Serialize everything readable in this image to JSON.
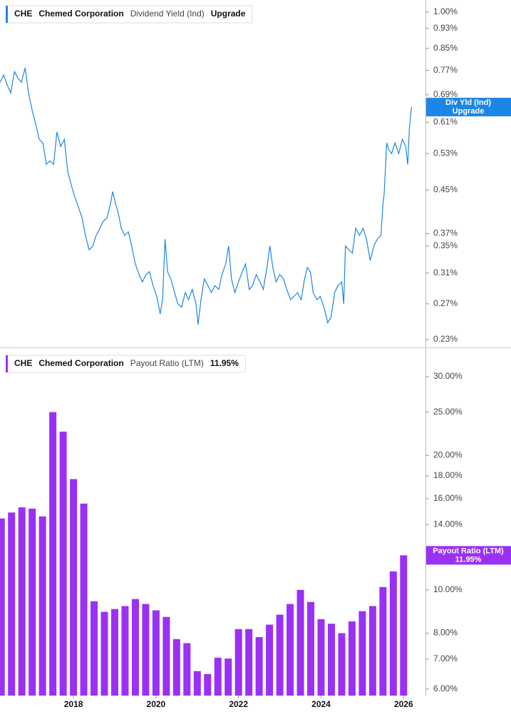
{
  "chart_data": [
    {
      "type": "line",
      "ticker": "CHE",
      "company": "Chemed Corporation",
      "badge": "Upgrade",
      "log": true,
      "xlim": [
        2016.22,
        2026.53
      ],
      "ylim": [
        0.222,
        1.056
      ],
      "yticks": [
        {
          "value": 1.0,
          "label": "1.00%"
        },
        {
          "value": 0.93,
          "label": "0.93%"
        },
        {
          "value": 0.85,
          "label": "0.85%"
        },
        {
          "value": 0.77,
          "label": "0.77%"
        },
        {
          "value": 0.69,
          "label": "0.69%"
        },
        {
          "value": 0.61,
          "label": "0.61%"
        },
        {
          "value": 0.53,
          "label": "0.53%"
        },
        {
          "value": 0.45,
          "label": "0.45%"
        },
        {
          "value": 0.37,
          "label": "0.37%"
        },
        {
          "value": 0.35,
          "label": "0.35%"
        },
        {
          "value": 0.31,
          "label": "0.31%"
        },
        {
          "value": 0.27,
          "label": "0.27%"
        },
        {
          "value": 0.23,
          "label": "0.23%"
        }
      ],
      "series": [
        {
          "name": "Dividend Yield (Ind)",
          "short_name": "Div Yld (Ind)",
          "color": "#1c86e6",
          "x": [
            2016.22,
            2016.31,
            2016.4,
            2016.48,
            2016.57,
            2016.66,
            2016.74,
            2016.83,
            2016.91,
            2017.0,
            2017.09,
            2017.17,
            2017.26,
            2017.34,
            2017.43,
            2017.52,
            2017.6,
            2017.69,
            2017.78,
            2017.86,
            2017.95,
            2018.03,
            2018.12,
            2018.21,
            2018.29,
            2018.38,
            2018.47,
            2018.55,
            2018.64,
            2018.72,
            2018.81,
            2018.9,
            2018.95,
            2019.02,
            2019.09,
            2019.16,
            2019.24,
            2019.33,
            2019.41,
            2019.5,
            2019.59,
            2019.67,
            2019.76,
            2019.84,
            2019.93,
            2020.02,
            2020.1,
            2020.16,
            2020.22,
            2020.28,
            2020.36,
            2020.45,
            2020.53,
            2020.62,
            2020.71,
            2020.79,
            2020.88,
            2020.97,
            2021.02,
            2021.09,
            2021.17,
            2021.26,
            2021.34,
            2021.43,
            2021.52,
            2021.6,
            2021.69,
            2021.76,
            2021.83,
            2021.91,
            2022.0,
            2022.09,
            2022.17,
            2022.26,
            2022.34,
            2022.43,
            2022.52,
            2022.6,
            2022.69,
            2022.76,
            2022.83,
            2022.91,
            2023.0,
            2023.09,
            2023.17,
            2023.26,
            2023.34,
            2023.43,
            2023.52,
            2023.6,
            2023.67,
            2023.74,
            2023.81,
            2023.9,
            2023.98,
            2024.07,
            2024.16,
            2024.24,
            2024.33,
            2024.41,
            2024.5,
            2024.55,
            2024.59,
            2024.67,
            2024.76,
            2024.84,
            2024.93,
            2025.02,
            2025.1,
            2025.19,
            2025.28,
            2025.36,
            2025.45,
            2025.5,
            2025.53,
            2025.59,
            2025.64,
            2025.71,
            2025.79,
            2025.88,
            2025.97,
            2026.05,
            2026.1,
            2026.14,
            2026.19
          ],
          "values": [
            0.73,
            0.754,
            0.719,
            0.696,
            0.766,
            0.742,
            0.73,
            0.779,
            0.696,
            0.643,
            0.603,
            0.565,
            0.556,
            0.505,
            0.513,
            0.505,
            0.584,
            0.547,
            0.565,
            0.489,
            0.459,
            0.437,
            0.417,
            0.397,
            0.367,
            0.344,
            0.35,
            0.367,
            0.379,
            0.391,
            0.397,
            0.424,
            0.447,
            0.424,
            0.404,
            0.379,
            0.367,
            0.373,
            0.35,
            0.323,
            0.308,
            0.298,
            0.308,
            0.312,
            0.293,
            0.279,
            0.258,
            0.275,
            0.361,
            0.312,
            0.302,
            0.284,
            0.27,
            0.266,
            0.284,
            0.275,
            0.288,
            0.27,
            0.246,
            0.275,
            0.302,
            0.293,
            0.284,
            0.293,
            0.288,
            0.308,
            0.323,
            0.35,
            0.302,
            0.284,
            0.298,
            0.312,
            0.323,
            0.288,
            0.293,
            0.308,
            0.298,
            0.288,
            0.318,
            0.35,
            0.318,
            0.298,
            0.308,
            0.302,
            0.288,
            0.275,
            0.279,
            0.284,
            0.275,
            0.302,
            0.318,
            0.312,
            0.284,
            0.275,
            0.279,
            0.266,
            0.248,
            0.254,
            0.284,
            0.293,
            0.298,
            0.27,
            0.35,
            0.344,
            0.339,
            0.379,
            0.367,
            0.379,
            0.361,
            0.328,
            0.35,
            0.361,
            0.367,
            0.424,
            0.444,
            0.556,
            0.539,
            0.53,
            0.556,
            0.53,
            0.565,
            0.547,
            0.505,
            0.593,
            0.653
          ]
        }
      ]
    },
    {
      "type": "bar",
      "ticker": "CHE",
      "company": "Chemed Corporation",
      "log": true,
      "xlim": [
        2016.22,
        2026.53
      ],
      "ylim": [
        5.8,
        34.5
      ],
      "xticks": [
        2018,
        2020,
        2022,
        2024,
        2026
      ],
      "yticks": [
        {
          "value": 30,
          "label": "30.00%"
        },
        {
          "value": 25,
          "label": "25.00%"
        },
        {
          "value": 20,
          "label": "20.00%"
        },
        {
          "value": 18,
          "label": "18.00%"
        },
        {
          "value": 16,
          "label": "16.00%"
        },
        {
          "value": 14,
          "label": "14.00%"
        },
        {
          "value": 10,
          "label": "10.00%"
        },
        {
          "value": 8,
          "label": "8.00%"
        },
        {
          "value": 7,
          "label": "7.00%"
        },
        {
          "value": 6,
          "label": "6.00%"
        }
      ],
      "series": [
        {
          "name": "Payout Ratio (LTM)",
          "color": "#9b30f5",
          "x": [
            2016.25,
            2016.5,
            2016.75,
            2017,
            2017.25,
            2017.5,
            2017.75,
            2018,
            2018.25,
            2018.5,
            2018.75,
            2019,
            2019.25,
            2019.5,
            2019.75,
            2020,
            2020.25,
            2020.5,
            2020.75,
            2021,
            2021.25,
            2021.5,
            2021.75,
            2022,
            2022.25,
            2022.5,
            2022.75,
            2023,
            2023.25,
            2023.5,
            2023.75,
            2024,
            2024.25,
            2024.5,
            2024.75,
            2025,
            2025.25,
            2025.5,
            2025.75,
            2026
          ],
          "values": [
            14.45,
            14.9,
            15.3,
            15.2,
            14.6,
            25.0,
            22.6,
            17.7,
            15.6,
            9.43,
            8.93,
            9.06,
            9.2,
            9.54,
            9.3,
            9.0,
            8.7,
            7.76,
            7.6,
            6.58,
            6.48,
            7.05,
            7.02,
            8.17,
            8.17,
            7.84,
            8.36,
            8.8,
            9.3,
            10.0,
            9.4,
            8.6,
            8.4,
            8.0,
            8.5,
            8.96,
            9.2,
            10.15,
            11.0,
            11.95
          ],
          "value_labels": [
            null,
            null,
            null,
            null,
            null,
            null,
            null,
            null,
            null,
            null,
            null,
            null,
            null,
            null,
            null,
            null,
            null,
            null,
            null,
            null,
            null,
            null,
            null,
            null,
            null,
            null,
            null,
            null,
            null,
            null,
            null,
            null,
            null,
            null,
            null,
            null,
            null,
            null,
            null,
            "11.95%"
          ]
        }
      ]
    }
  ]
}
